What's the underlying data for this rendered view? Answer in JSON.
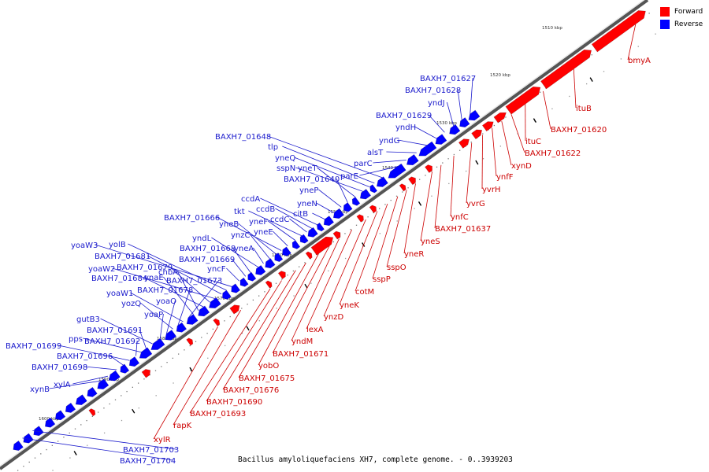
{
  "colors": {
    "forward": "#ff0000",
    "reverse": "#0000ff",
    "forward_label": "#cc0000",
    "reverse_label": "#1a1acc",
    "ruler": "#333333"
  },
  "legend": {
    "forward": "Forward",
    "reverse": "Reverse"
  },
  "caption": "Bacillus amyloliquefaciens XH7, complete genome. - 0..3939203",
  "ticks": [
    "1510 kbp",
    "1520 kbp",
    "1530 kbp",
    "1540 kbp",
    "1550 kbp",
    "1560 kbp",
    "1570 kbp",
    "1580 kbp",
    "1590 kbp",
    "1600 kbp"
  ],
  "forward_labels": [
    "bmyA",
    "ituB",
    "BAXH7_01620",
    "ituC",
    "BAXH7_01622",
    "xynD",
    "ynfF",
    "yvrH",
    "yvrG",
    "ynfC",
    "BAXH7_01637",
    "yneS",
    "yneR",
    "sspO",
    "sspP",
    "cotM",
    "yneK",
    "ynzD",
    "lexA",
    "yndM",
    "BAXH7_01671",
    "yobO",
    "BAXH7_01675",
    "BAXH7_01676",
    "BAXH7_01690",
    "BAXH7_01693",
    "rapK",
    "xylR"
  ],
  "reverse_labels": [
    "BAXH7_01627",
    "BAXH7_01628",
    "yndJ",
    "BAXH7_01629",
    "yndH",
    "yndG",
    "alsT",
    "parC",
    "parE",
    "BAXH7_01648",
    "tlp",
    "yneQ",
    "sspN",
    "yneT",
    "BAXH7_01640",
    "yneP",
    "yneN",
    "citB",
    "ccdA",
    "ccdB",
    "ccdC",
    "tkt",
    "yneF",
    "yneE",
    "BAXH7_01666",
    "yneB",
    "ynzC",
    "yneA",
    "yndL",
    "BAXH7_01668",
    "BAXH7_01669",
    "yncF",
    "yoaW3",
    "yolB",
    "BAXH7_01681",
    "yoaW2",
    "BAXH7_01679",
    "BAXH7_01684",
    "chbA",
    "ynaE",
    "BAXH7_01673",
    "yoaW1",
    "BAXH7_01678",
    "yozQ",
    "yoaO",
    "yoaP",
    "gutB3",
    "BAXH7_01691",
    "pps",
    "BAXH7_01692",
    "BAXH7_01699",
    "BAXH7_01696",
    "BAXH7_01698",
    "xylA",
    "xynB",
    "BAXH7_01703",
    "BAXH7_01704"
  ]
}
